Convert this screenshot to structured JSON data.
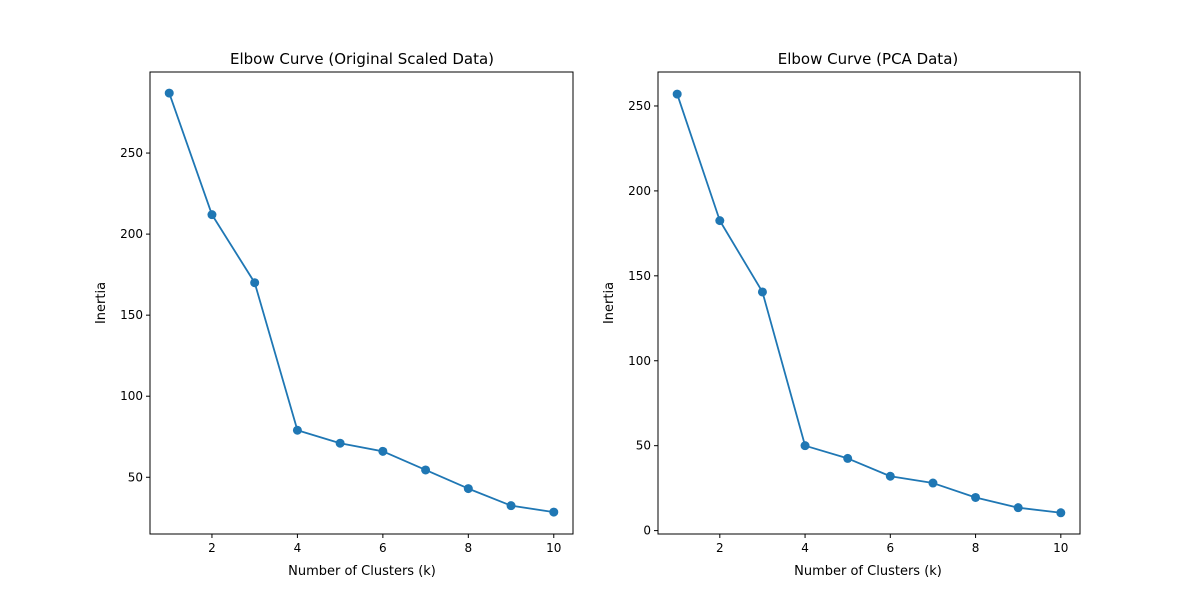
{
  "chart_data": [
    {
      "type": "line",
      "title": "Elbow Curve (Original Scaled Data)",
      "xlabel": "Number of Clusters (k)",
      "ylabel": "Inertia",
      "x": [
        1,
        2,
        3,
        4,
        5,
        6,
        7,
        8,
        9,
        10
      ],
      "series": [
        {
          "values": [
            287,
            212,
            170,
            79,
            71,
            66,
            54.5,
            43,
            32.5,
            28.5
          ]
        }
      ],
      "xticks": [
        2,
        4,
        6,
        8,
        10
      ],
      "yticks": [
        50,
        100,
        150,
        200,
        250
      ],
      "xlim": [
        0.55,
        10.45
      ],
      "ylim": [
        15,
        300
      ],
      "color": "#1f77b4",
      "marker": "circle",
      "grid": false,
      "legend": false
    },
    {
      "type": "line",
      "title": "Elbow Curve (PCA Data)",
      "xlabel": "Number of Clusters (k)",
      "ylabel": "Inertia",
      "x": [
        1,
        2,
        3,
        4,
        5,
        6,
        7,
        8,
        9,
        10
      ],
      "series": [
        {
          "values": [
            257,
            182.5,
            140.5,
            50,
            42.5,
            32,
            28,
            19.5,
            13.5,
            10.5
          ]
        }
      ],
      "xticks": [
        2,
        4,
        6,
        8,
        10
      ],
      "yticks": [
        0,
        50,
        100,
        150,
        200,
        250
      ],
      "xlim": [
        0.55,
        10.45
      ],
      "ylim": [
        -2,
        270
      ],
      "color": "#1f77b4",
      "marker": "circle",
      "grid": false,
      "legend": false
    }
  ]
}
